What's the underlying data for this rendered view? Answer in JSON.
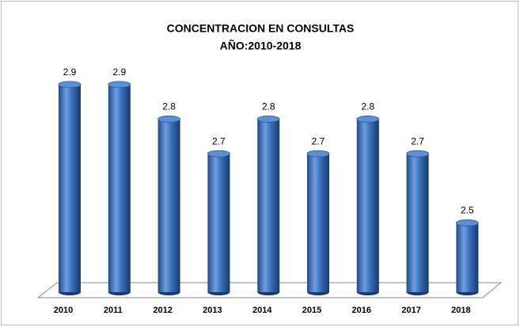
{
  "chart_data": {
    "type": "bar",
    "title": "CONCENTRACION EN CONSULTAS",
    "subtitle": "AÑO:2010-2018",
    "categories": [
      "2010",
      "2011",
      "2012",
      "2013",
      "2014",
      "2015",
      "2016",
      "2017",
      "2018"
    ],
    "values": [
      2.9,
      2.9,
      2.8,
      2.7,
      2.8,
      2.7,
      2.8,
      2.7,
      2.5
    ],
    "color": "#3a6fb8",
    "ylim": [
      2.3,
      3.0
    ]
  }
}
